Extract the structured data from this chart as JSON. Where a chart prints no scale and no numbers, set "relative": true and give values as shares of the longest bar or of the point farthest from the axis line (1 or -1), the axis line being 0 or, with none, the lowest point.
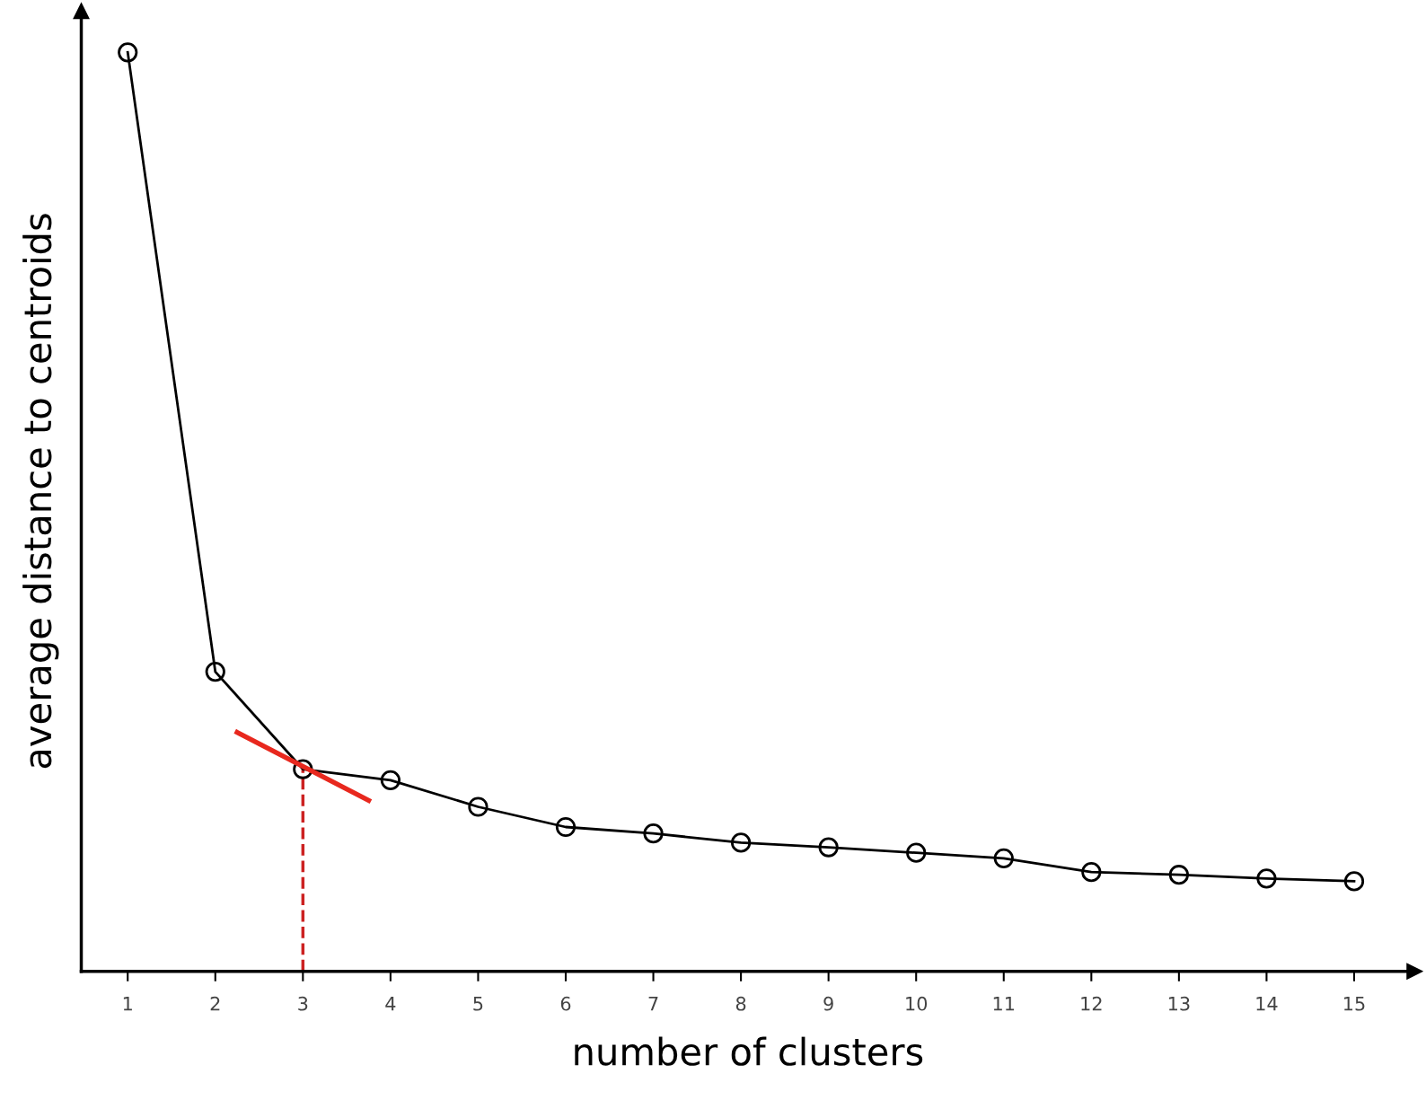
{
  "chart_data": {
    "type": "line",
    "relative": true,
    "xlabel": "number of clusters",
    "ylabel": "average distance to centroids",
    "x": [
      1,
      2,
      3,
      4,
      5,
      6,
      7,
      8,
      9,
      10,
      11,
      12,
      13,
      14,
      15
    ],
    "xlim": [
      0.47,
      15.69
    ],
    "xticks": [
      1,
      2,
      3,
      4,
      5,
      6,
      7,
      8,
      9,
      10,
      11,
      12,
      13,
      14,
      15
    ],
    "series": [
      {
        "color": "#000000",
        "marker": "circle",
        "values": [
          1,
          0.326,
          0.22,
          0.208,
          0.179,
          0.157,
          0.15,
          0.14,
          0.135,
          0.129,
          0.123,
          0.108,
          0.105,
          0.101,
          0.098
        ]
      },
      {
        "color": "#e8281e",
        "x": [
          2.25,
          3.75
        ],
        "values": [
          0.26,
          0.186
        ]
      }
    ],
    "ref_lines": [
      {
        "axis": "x",
        "value": 3,
        "color": "#cc2222",
        "line_style": "dashed"
      }
    ],
    "grid": false,
    "legend": false
  }
}
